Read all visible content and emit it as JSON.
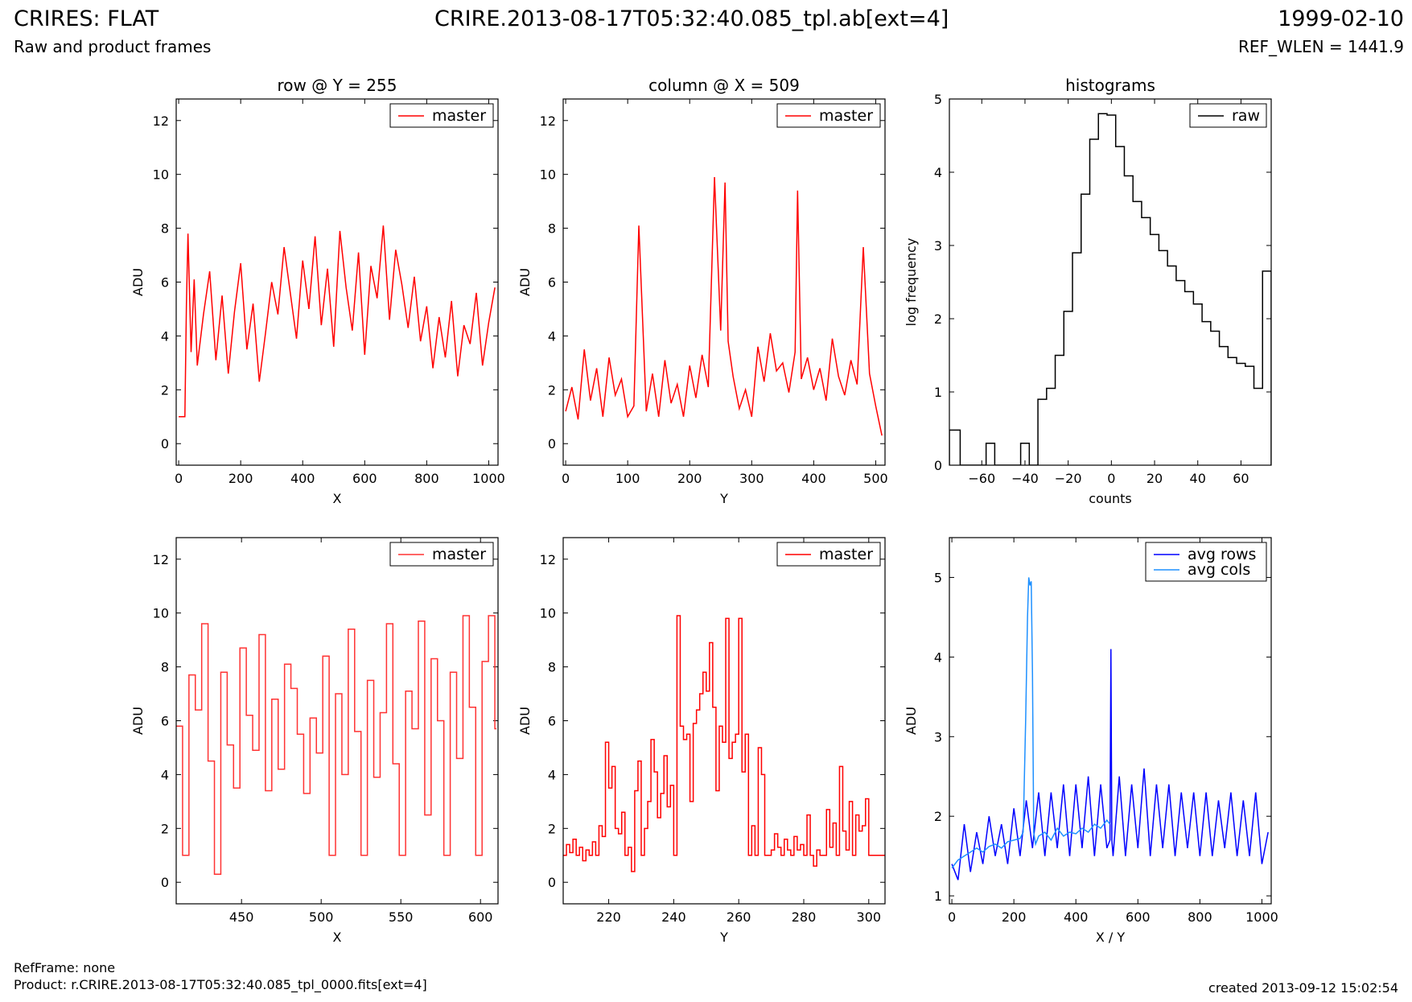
{
  "header": {
    "title": "CRIRES: FLAT",
    "subtitle": "Raw and product frames",
    "file": "CRIRE.2013-08-17T05:32:40.085_tpl.ab[ext=4]",
    "date": "1999-02-10",
    "ref_wlen": "REF_WLEN = 1441.9"
  },
  "footer": {
    "ref_frame": "RefFrame: none",
    "product": "Product: r.CRIRE.2013-08-17T05:32:40.085_tpl_0000.fits[ext=4]",
    "created": "created 2013-09-12 15:02:54"
  },
  "colors": {
    "master": "#ff0000",
    "master_zoom": "#ff3333",
    "raw": "#000000",
    "avg_rows": "#0000ff",
    "avg_cols": "#1e90ff"
  },
  "chart_data": [
    {
      "id": "row",
      "type": "line",
      "title": "row @ Y = 255",
      "xlabel": "X",
      "ylabel": "ADU",
      "xlim": [
        -8,
        1030
      ],
      "ylim": [
        -0.8,
        12.8
      ],
      "xticks": [
        0,
        200,
        400,
        600,
        800,
        1000
      ],
      "yticks": [
        0,
        2,
        4,
        6,
        8,
        10,
        12
      ],
      "legend": "top-right",
      "series": [
        {
          "name": "master",
          "color": "#ff0000",
          "x": [
            0,
            20,
            25,
            30,
            40,
            50,
            60,
            80,
            100,
            120,
            140,
            160,
            180,
            200,
            220,
            240,
            260,
            280,
            300,
            320,
            340,
            360,
            380,
            400,
            420,
            440,
            460,
            480,
            500,
            520,
            540,
            560,
            580,
            600,
            620,
            640,
            660,
            680,
            700,
            720,
            740,
            760,
            780,
            800,
            820,
            840,
            860,
            880,
            900,
            920,
            940,
            960,
            980,
            1000,
            1020
          ],
          "y": [
            1,
            1,
            5.2,
            7.8,
            3.4,
            6.1,
            2.9,
            4.8,
            6.4,
            3.1,
            5.5,
            2.6,
            4.9,
            6.7,
            3.5,
            5.2,
            2.3,
            4.1,
            6.0,
            4.8,
            7.3,
            5.6,
            3.9,
            6.8,
            5.0,
            7.7,
            4.4,
            6.5,
            3.6,
            7.9,
            5.8,
            4.2,
            7.1,
            3.3,
            6.6,
            5.4,
            8.1,
            4.6,
            7.2,
            5.9,
            4.3,
            6.2,
            3.8,
            5.1,
            2.8,
            4.7,
            3.2,
            5.3,
            2.5,
            4.4,
            3.7,
            5.6,
            2.9,
            4.5,
            5.8
          ]
        }
      ]
    },
    {
      "id": "column",
      "type": "line",
      "title": "column @ X = 509",
      "xlabel": "Y",
      "ylabel": "ADU",
      "xlim": [
        -4,
        515
      ],
      "ylim": [
        -0.8,
        12.8
      ],
      "xticks": [
        0,
        100,
        200,
        300,
        400,
        500
      ],
      "yticks": [
        0,
        2,
        4,
        6,
        8,
        10,
        12
      ],
      "legend": "top-right",
      "series": [
        {
          "name": "master",
          "color": "#ff0000",
          "x": [
            0,
            10,
            20,
            30,
            40,
            50,
            60,
            70,
            80,
            90,
            100,
            110,
            118,
            130,
            140,
            150,
            160,
            170,
            180,
            190,
            200,
            210,
            220,
            230,
            240,
            250,
            257,
            262,
            270,
            280,
            290,
            300,
            310,
            320,
            330,
            340,
            350,
            360,
            370,
            374,
            380,
            390,
            400,
            410,
            420,
            430,
            440,
            450,
            460,
            470,
            480,
            490,
            500,
            510
          ],
          "y": [
            1.2,
            2.1,
            0.9,
            3.5,
            1.6,
            2.8,
            1.0,
            3.2,
            1.8,
            2.4,
            1.0,
            1.4,
            8.1,
            1.2,
            2.6,
            1.0,
            3.1,
            1.5,
            2.2,
            1.0,
            2.9,
            1.7,
            3.3,
            2.1,
            9.9,
            4.2,
            9.7,
            3.8,
            2.5,
            1.3,
            2.0,
            1.0,
            3.6,
            2.3,
            4.1,
            2.7,
            3.0,
            1.9,
            3.4,
            9.4,
            2.4,
            3.2,
            2.0,
            2.8,
            1.6,
            3.9,
            2.5,
            1.8,
            3.1,
            2.2,
            7.3,
            2.6,
            1.4,
            0.3
          ]
        }
      ]
    },
    {
      "id": "histograms",
      "type": "histogram",
      "title": "histograms",
      "xlabel": "counts",
      "ylabel": "log frequency",
      "xlim": [
        -75,
        74
      ],
      "ylim": [
        0,
        5
      ],
      "xticks": [
        -60,
        -40,
        -20,
        0,
        20,
        40,
        60
      ],
      "yticks": [
        0,
        1,
        2,
        3,
        4,
        5
      ],
      "legend": "top-right",
      "series": [
        {
          "name": "raw",
          "color": "#000000",
          "bin_edges": [
            -75,
            -70,
            -66,
            -62,
            -58,
            -54,
            -50,
            -46,
            -42,
            -38,
            -34,
            -30,
            -26,
            -22,
            -18,
            -14,
            -10,
            -6,
            -2,
            2,
            6,
            10,
            14,
            18,
            22,
            26,
            30,
            34,
            38,
            42,
            46,
            50,
            54,
            58,
            62,
            66,
            70,
            74
          ],
          "values": [
            0.48,
            0,
            0,
            0,
            0.3,
            0,
            0,
            0,
            0.3,
            0,
            0.9,
            1.05,
            1.5,
            2.1,
            2.9,
            3.7,
            4.45,
            4.8,
            4.78,
            4.35,
            3.95,
            3.6,
            3.38,
            3.15,
            2.93,
            2.72,
            2.52,
            2.37,
            2.2,
            1.96,
            1.83,
            1.62,
            1.47,
            1.39,
            1.35,
            1.05,
            2.65
          ]
        }
      ]
    },
    {
      "id": "row-zoom",
      "type": "line",
      "title": "",
      "xlabel": "X",
      "ylabel": "ADU",
      "xlim": [
        409,
        611
      ],
      "ylim": [
        -0.8,
        12.8
      ],
      "xticks": [
        450,
        500,
        550,
        600
      ],
      "yticks": [
        0,
        2,
        4,
        6,
        8,
        10,
        12
      ],
      "legend": "top-right",
      "series": [
        {
          "name": "master",
          "color": "#ff3333",
          "step": true,
          "x": [
            409,
            413,
            417,
            421,
            425,
            429,
            433,
            437,
            441,
            445,
            449,
            453,
            457,
            461,
            465,
            469,
            473,
            477,
            481,
            485,
            489,
            493,
            497,
            501,
            505,
            509,
            513,
            517,
            521,
            525,
            529,
            533,
            537,
            541,
            545,
            549,
            553,
            557,
            561,
            565,
            569,
            573,
            577,
            581,
            585,
            589,
            593,
            597,
            601,
            605,
            609
          ],
          "y": [
            5.8,
            1.0,
            7.7,
            6.4,
            9.6,
            4.5,
            0.3,
            7.8,
            5.1,
            3.5,
            8.7,
            6.2,
            4.9,
            9.2,
            3.4,
            6.8,
            4.2,
            8.1,
            7.2,
            5.5,
            3.3,
            6.1,
            4.8,
            8.4,
            1.0,
            7.0,
            4.0,
            9.4,
            5.6,
            1.0,
            7.5,
            3.9,
            6.3,
            9.6,
            4.4,
            1.0,
            7.1,
            5.7,
            9.7,
            2.5,
            8.3,
            6.0,
            1.0,
            7.8,
            4.6,
            9.9,
            6.5,
            1.0,
            8.2,
            9.9,
            5.7
          ]
        }
      ]
    },
    {
      "id": "column-zoom",
      "type": "line",
      "title": "",
      "xlabel": "Y",
      "ylabel": "ADU",
      "xlim": [
        206,
        305
      ],
      "ylim": [
        -0.8,
        12.8
      ],
      "xticks": [
        220,
        240,
        260,
        280,
        300
      ],
      "yticks": [
        0,
        2,
        4,
        6,
        8,
        10,
        12
      ],
      "legend": "top-right",
      "series": [
        {
          "name": "master",
          "color": "#ff0000",
          "step": true,
          "x": [
            206,
            207,
            208,
            209,
            210,
            211,
            212,
            213,
            214,
            215,
            216,
            217,
            218,
            219,
            220,
            221,
            222,
            223,
            224,
            225,
            226,
            227,
            228,
            229,
            230,
            231,
            232,
            233,
            234,
            235,
            236,
            237,
            238,
            239,
            240,
            241,
            242,
            243,
            244,
            245,
            246,
            247,
            248,
            249,
            250,
            251,
            252,
            253,
            254,
            255,
            256,
            257,
            258,
            259,
            260,
            261,
            262,
            263,
            264,
            265,
            266,
            267,
            268,
            269,
            270,
            271,
            272,
            273,
            274,
            275,
            276,
            277,
            278,
            279,
            280,
            281,
            282,
            283,
            284,
            285,
            286,
            287,
            288,
            289,
            290,
            291,
            292,
            293,
            294,
            295,
            296,
            297,
            298,
            299,
            300,
            301,
            302,
            303,
            304
          ],
          "y": [
            1.0,
            1.4,
            1.1,
            1.6,
            1.0,
            1.3,
            0.8,
            1.2,
            1.0,
            1.5,
            1.0,
            2.1,
            1.7,
            5.2,
            3.5,
            4.3,
            2.0,
            1.8,
            2.6,
            1.0,
            1.3,
            0.4,
            3.4,
            4.5,
            1.0,
            2.0,
            3.0,
            5.3,
            4.1,
            2.4,
            3.3,
            4.7,
            2.8,
            3.6,
            1.0,
            9.9,
            5.8,
            5.3,
            5.5,
            3.0,
            5.9,
            6.4,
            7.0,
            7.8,
            7.1,
            8.9,
            6.5,
            3.4,
            5.8,
            5.2,
            9.8,
            4.6,
            5.2,
            5.5,
            9.8,
            4.1,
            5.5,
            1.0,
            2.1,
            1.0,
            5.0,
            4.0,
            1.0,
            1.0,
            1.2,
            1.8,
            1.3,
            1.0,
            1.6,
            1.2,
            1.0,
            1.7,
            1.2,
            1.4,
            1.0,
            2.5,
            1.0,
            0.6,
            1.2,
            1.0,
            1.0,
            2.7,
            1.3,
            2.2,
            1.0,
            4.3,
            1.9,
            1.2,
            3.0,
            1.0,
            2.5,
            1.9,
            2.1,
            3.1,
            1.0,
            1.0,
            1.0,
            1.0,
            1.0
          ]
        }
      ]
    },
    {
      "id": "averages",
      "type": "line",
      "title": "",
      "xlabel": "X / Y",
      "ylabel": "ADU",
      "xlim": [
        -8,
        1030
      ],
      "ylim": [
        0.9,
        5.5
      ],
      "xticks": [
        0,
        200,
        400,
        600,
        800,
        1000
      ],
      "yticks": [
        1,
        2,
        3,
        4,
        5
      ],
      "legend": "top-right",
      "series": [
        {
          "name": "avg rows",
          "color": "#0000ff",
          "x": [
            0,
            20,
            40,
            60,
            80,
            100,
            120,
            140,
            160,
            180,
            200,
            220,
            240,
            260,
            280,
            300,
            320,
            340,
            360,
            380,
            400,
            420,
            440,
            460,
            480,
            500,
            510,
            513,
            516,
            520,
            540,
            560,
            580,
            600,
            620,
            640,
            660,
            680,
            700,
            720,
            740,
            760,
            780,
            800,
            820,
            840,
            860,
            880,
            900,
            920,
            940,
            960,
            980,
            1000,
            1020
          ],
          "y": [
            1.4,
            1.2,
            1.9,
            1.3,
            1.8,
            1.4,
            2.0,
            1.5,
            1.9,
            1.4,
            2.1,
            1.5,
            2.2,
            1.6,
            2.3,
            1.5,
            2.3,
            1.6,
            2.4,
            1.5,
            2.4,
            1.6,
            2.5,
            1.5,
            2.4,
            1.6,
            1.7,
            4.1,
            1.7,
            1.5,
            2.5,
            1.5,
            2.4,
            1.6,
            2.6,
            1.5,
            2.4,
            1.6,
            2.4,
            1.5,
            2.3,
            1.6,
            2.3,
            1.5,
            2.3,
            1.5,
            2.2,
            1.6,
            2.3,
            1.5,
            2.2,
            1.5,
            2.3,
            1.4,
            1.8
          ]
        },
        {
          "name": "avg cols",
          "color": "#1e90ff",
          "x": [
            0,
            20,
            40,
            60,
            80,
            100,
            120,
            140,
            160,
            180,
            200,
            220,
            230,
            238,
            244,
            248,
            252,
            256,
            260,
            264,
            270,
            280,
            300,
            320,
            340,
            360,
            380,
            400,
            420,
            440,
            460,
            480,
            500,
            510
          ],
          "y": [
            1.35,
            1.45,
            1.5,
            1.55,
            1.6,
            1.55,
            1.62,
            1.65,
            1.6,
            1.68,
            1.7,
            1.72,
            1.8,
            3.2,
            4.5,
            5.0,
            4.9,
            4.95,
            3.8,
            1.8,
            1.65,
            1.75,
            1.8,
            1.7,
            1.85,
            1.75,
            1.8,
            1.78,
            1.85,
            1.8,
            1.9,
            1.85,
            1.95,
            1.9
          ]
        }
      ]
    }
  ]
}
